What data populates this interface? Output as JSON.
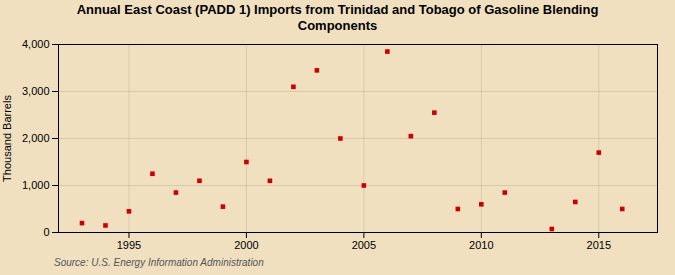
{
  "chart_data": {
    "type": "scatter",
    "title": "Annual East Coast (PADD 1) Imports from Trinidad and Tobago of Gasoline Blending\nComponents",
    "ylabel": "Thousand Barrels",
    "annotations": [
      "Source: U.S. Energy Information Administration"
    ],
    "x": [
      1993,
      1994,
      1995,
      1996,
      1997,
      1998,
      1999,
      2000,
      2001,
      2002,
      2003,
      2004,
      2005,
      2006,
      2007,
      2008,
      2009,
      2010,
      2011,
      2013,
      2014,
      2015,
      2016
    ],
    "values": [
      200,
      150,
      450,
      1250,
      850,
      1100,
      550,
      1500,
      1100,
      3100,
      3450,
      2000,
      1000,
      3850,
      2050,
      2550,
      500,
      600,
      850,
      75,
      650,
      1700,
      500
    ],
    "color": "#cc0000",
    "marker": "square",
    "xlim": [
      1992.0,
      2017.5
    ],
    "xticks": [
      1995,
      2000,
      2005,
      2010,
      2015
    ],
    "ylim": [
      0,
      4000
    ],
    "yticks": [
      0,
      {
        "value": 1000,
        "label": "1,000"
      },
      {
        "value": 2000,
        "label": "2,000"
      },
      {
        "value": 3000,
        "label": "3,000"
      },
      {
        "value": 4000,
        "label": "4,000"
      }
    ],
    "grid": true
  }
}
